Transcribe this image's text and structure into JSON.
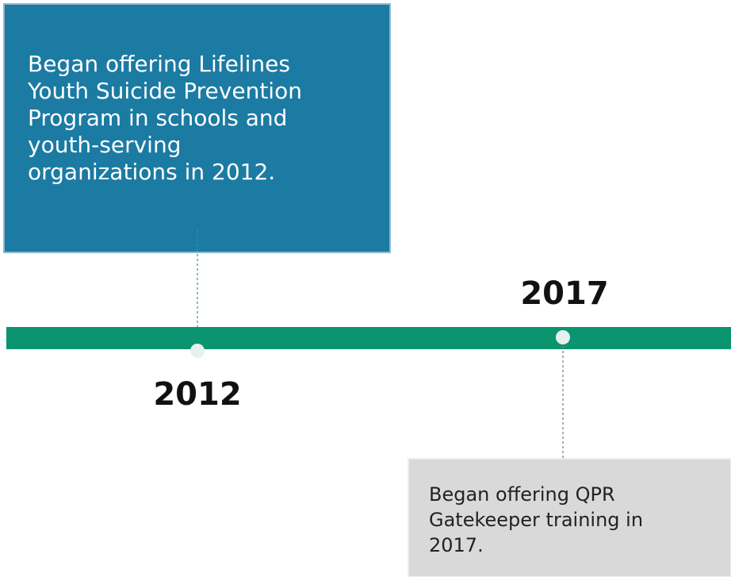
{
  "events": [
    {
      "year": "2012",
      "lines": [
        "Began offering Lifelines",
        "Youth Suicide Prevention",
        "Program in schools and",
        "youth-serving",
        "organizations in 2012."
      ]
    },
    {
      "year": "2017",
      "lines": [
        "Began offering QPR",
        "Gatekeeper training in",
        "2017."
      ]
    }
  ]
}
